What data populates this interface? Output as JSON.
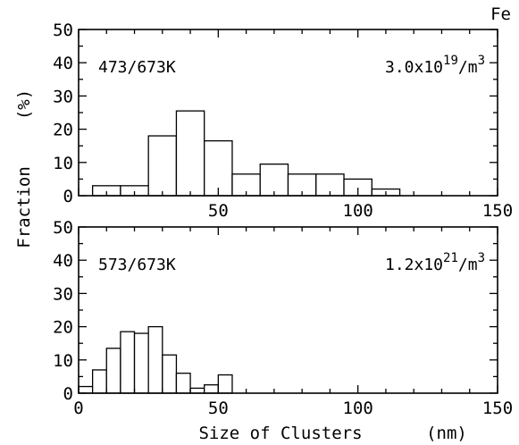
{
  "figure": {
    "element_label": "Fe",
    "ylabel": "Fraction",
    "ylabel_unit": "(%)",
    "xlabel": "Size of Clusters",
    "xlabel_unit": "(nm)"
  },
  "chart_data": [
    {
      "type": "bar",
      "condition": "473/673K",
      "density_base": "3.0x10",
      "density_exp": "19",
      "density_unit": "/m",
      "density_unit_exp": "3",
      "xlim": [
        0,
        150
      ],
      "ylim": [
        0,
        50
      ],
      "xticks": [
        0,
        50,
        100,
        150
      ],
      "xtick_labels": [
        "",
        "50",
        "100",
        "150"
      ],
      "yticks": [
        0,
        10,
        20,
        30,
        40,
        50
      ],
      "bin_width": 10,
      "bins": [
        {
          "x0": 5,
          "x1": 15,
          "value": 3
        },
        {
          "x0": 15,
          "x1": 25,
          "value": 3
        },
        {
          "x0": 25,
          "x1": 35,
          "value": 18
        },
        {
          "x0": 35,
          "x1": 45,
          "value": 25.5
        },
        {
          "x0": 45,
          "x1": 55,
          "value": 16.5
        },
        {
          "x0": 55,
          "x1": 65,
          "value": 6.5
        },
        {
          "x0": 65,
          "x1": 75,
          "value": 9.5
        },
        {
          "x0": 75,
          "x1": 85,
          "value": 6.5
        },
        {
          "x0": 85,
          "x1": 95,
          "value": 6.5
        },
        {
          "x0": 95,
          "x1": 105,
          "value": 5
        },
        {
          "x0": 105,
          "x1": 115,
          "value": 2
        }
      ]
    },
    {
      "type": "bar",
      "condition": "573/673K",
      "density_base": "1.2x10",
      "density_exp": "21",
      "density_unit": "/m",
      "density_unit_exp": "3",
      "xlim": [
        0,
        150
      ],
      "ylim": [
        0,
        50
      ],
      "xticks": [
        0,
        50,
        100,
        150
      ],
      "xtick_labels": [
        "0",
        "50",
        "100",
        "150"
      ],
      "yticks": [
        0,
        10,
        20,
        30,
        40,
        50
      ],
      "bin_width": 5,
      "bins": [
        {
          "x0": 0,
          "x1": 5,
          "value": 2
        },
        {
          "x0": 5,
          "x1": 10,
          "value": 7
        },
        {
          "x0": 10,
          "x1": 15,
          "value": 13.5
        },
        {
          "x0": 15,
          "x1": 20,
          "value": 18.5
        },
        {
          "x0": 20,
          "x1": 25,
          "value": 18
        },
        {
          "x0": 25,
          "x1": 30,
          "value": 20
        },
        {
          "x0": 30,
          "x1": 35,
          "value": 11.5
        },
        {
          "x0": 35,
          "x1": 40,
          "value": 6
        },
        {
          "x0": 40,
          "x1": 45,
          "value": 1.5
        },
        {
          "x0": 45,
          "x1": 50,
          "value": 2.5
        },
        {
          "x0": 50,
          "x1": 55,
          "value": 5.5
        }
      ]
    }
  ]
}
